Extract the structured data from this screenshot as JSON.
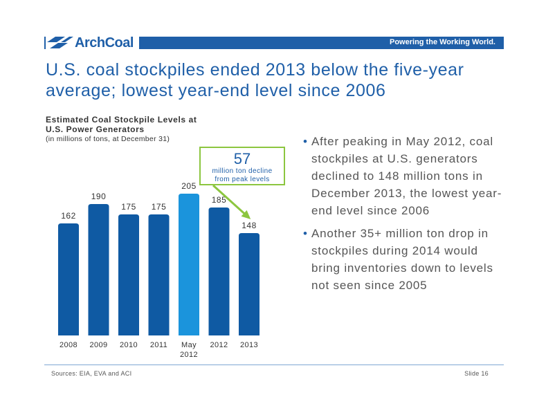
{
  "header": {
    "logo_text": "ArchCoal",
    "tagline": "Powering the Working World."
  },
  "title": "U.S. coal stockpiles ended 2013 below the five-year average; lowest year-end level since 2006",
  "callout": {
    "number": "57",
    "text_line1": "million ton decline",
    "text_line2": "from peak levels"
  },
  "bullets": [
    "After peaking in May 2012, coal stockpiles at U.S. generators declined to 148 million tons in December 2013, the lowest year-end level since 2006",
    "Another 35+ million ton drop in stockpiles during 2014 would bring inventories down to levels not seen since 2005"
  ],
  "footer": {
    "sources": "Sources: EIA, EVA and ACI",
    "slide": "Slide 16"
  },
  "colors": {
    "brand_blue": "#1f5fa8",
    "bar_dark": "#0f5aa3",
    "bar_highlight": "#1b94dc",
    "callout_green": "#8cc63f"
  },
  "chart_data": {
    "type": "bar",
    "title": "Estimated Coal Stockpile Levels at U.S. Power Generators",
    "subtitle": "(in millions of tons, at December 31)",
    "categories": [
      "2008",
      "2009",
      "2010",
      "2011",
      "May 2012",
      "2012",
      "2013"
    ],
    "values": [
      162,
      190,
      175,
      175,
      205,
      185,
      148
    ],
    "highlight_category": "May 2012",
    "ylim": [
      0,
      210
    ],
    "grid": false,
    "xlabel": "",
    "ylabel": ""
  }
}
